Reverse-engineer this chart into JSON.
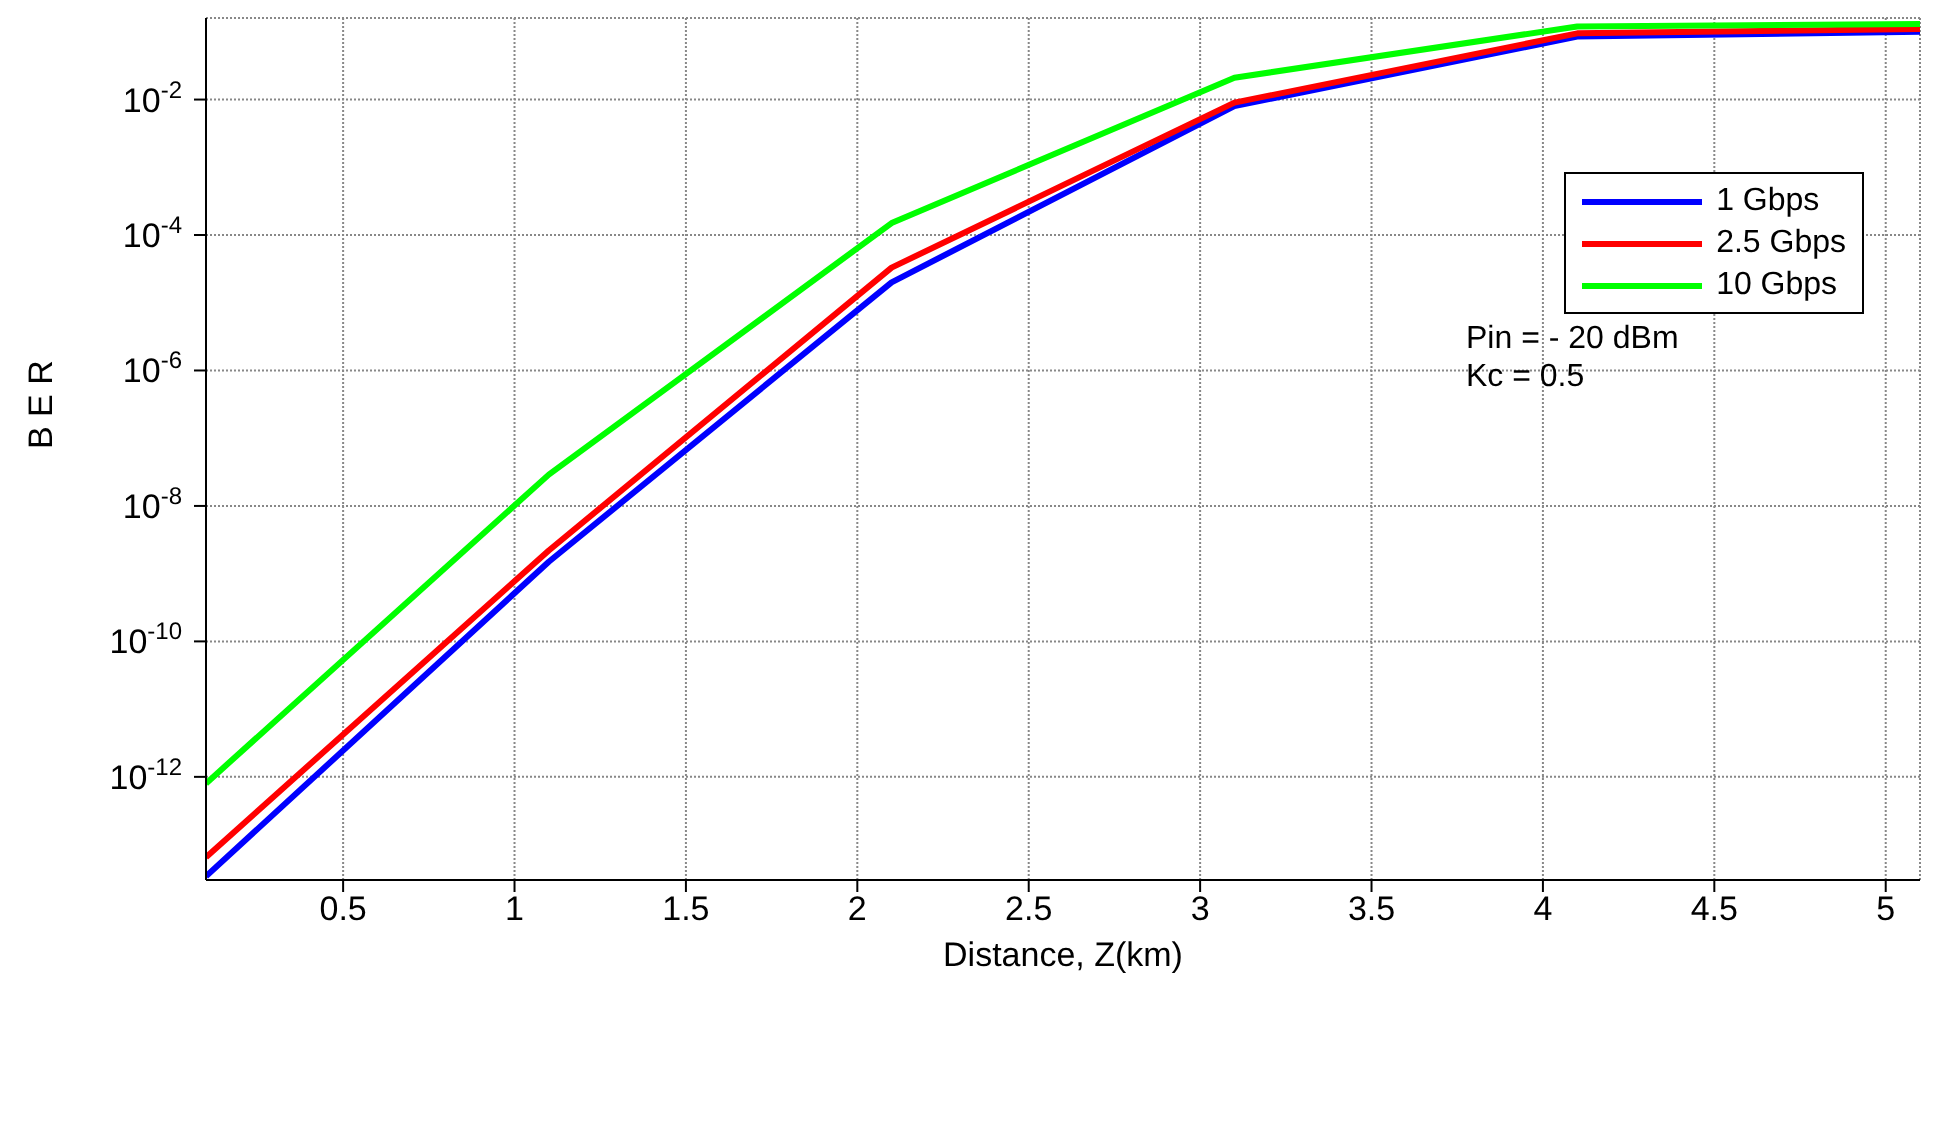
{
  "chart_data": {
    "type": "line",
    "xlabel": "Distance, Z(km)",
    "ylabel": "B E R",
    "log": "y",
    "grid": true,
    "legend": "top right",
    "marker": "none",
    "line_style": "solid",
    "x": [
      0.1,
      1.1,
      2.1,
      3.1,
      4.1,
      5.1
    ],
    "xlim": [
      0.1,
      5.1
    ],
    "xticks": [
      0.5,
      1,
      1.5,
      2,
      2.5,
      3,
      3.5,
      4,
      4.5,
      5
    ],
    "ylim": [
      3e-14,
      0.16
    ],
    "yticks": [
      {
        "value": 1e-12,
        "label": "10$^{-12}$"
      },
      {
        "value": 1e-10,
        "label": "10$^{-10}$"
      },
      {
        "value": 1e-08,
        "label": "10$^{-8}$"
      },
      {
        "value": 1e-06,
        "label": "10$^{-6}$"
      },
      {
        "value": 0.0001,
        "label": "10$^{-4}$"
      },
      {
        "value": 0.01,
        "label": "10$^{-2}$"
      }
    ],
    "series": [
      {
        "name": "1 Gbps",
        "color": "#0000ff",
        "values": [
          3.4e-14,
          1.5e-09,
          2e-05,
          0.008,
          0.085,
          0.1
        ]
      },
      {
        "name": "2.5 Gbps",
        "color": "#ff0000",
        "values": [
          6.5e-14,
          2.2e-09,
          3.3e-05,
          0.009,
          0.095,
          0.11
        ]
      },
      {
        "name": "10 Gbps",
        "color": "#00ff00",
        "values": [
          8e-13,
          2.9e-08,
          0.00015,
          0.021,
          0.12,
          0.13
        ]
      }
    ],
    "annotations": [
      "Pin = - 20 dBm",
      "Kc = 0.5"
    ]
  }
}
